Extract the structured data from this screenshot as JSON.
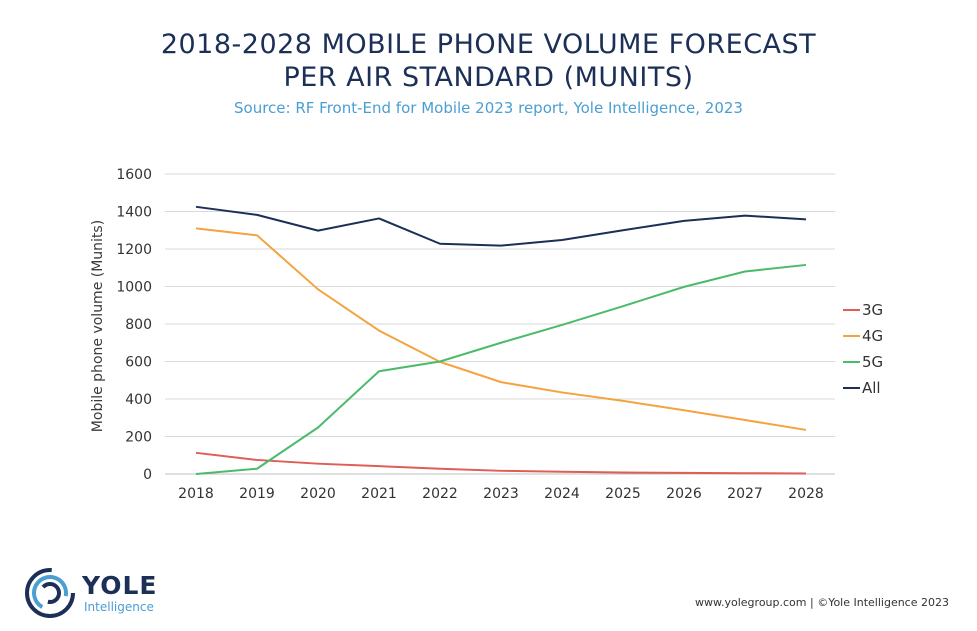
{
  "title_line1": "2018-2028 MOBILE PHONE VOLUME FORECAST",
  "title_line2": "PER AIR STANDARD (MUNITS)",
  "subtitle": "Source:  RF Front-End for Mobile 2023 report, Yole Intelligence, 2023",
  "footer": "www.yolegroup.com | ©Yole Intelligence 2023",
  "logo": {
    "word": "YOLE",
    "sub": "Intelligence",
    "icon": "yole-rings-logo"
  },
  "colors": {
    "title": "#1b2f57",
    "subtitle": "#4b9ed1",
    "grid": "#d9d9d9"
  },
  "chart_data": {
    "type": "line",
    "ylabel": "Mobile phone volume (Munits)",
    "xlabel": "",
    "x": [
      "2018",
      "2019",
      "2020",
      "2021",
      "2022",
      "2023",
      "2024",
      "2025",
      "2026",
      "2027",
      "2028"
    ],
    "ylim": [
      0,
      1600
    ],
    "yticks": [
      0,
      200,
      400,
      600,
      800,
      1000,
      1200,
      1400,
      1600
    ],
    "grid": "horizontal",
    "legend": "right",
    "series": [
      {
        "name": "3G",
        "color": "#e05c55",
        "values": [
          113,
          75,
          55,
          42,
          28,
          17,
          12,
          8,
          6,
          4,
          3
        ]
      },
      {
        "name": "4G",
        "color": "#f3a340",
        "values": [
          1310,
          1273,
          985,
          765,
          598,
          490,
          435,
          390,
          340,
          288,
          235
        ]
      },
      {
        "name": "5G",
        "color": "#4bbb6b",
        "values": [
          0,
          28,
          248,
          548,
          600,
          700,
          795,
          895,
          998,
          1080,
          1115
        ]
      },
      {
        "name": "All",
        "color": "#1b2f57",
        "values": [
          1425,
          1382,
          1298,
          1363,
          1228,
          1218,
          1248,
          1300,
          1350,
          1378,
          1358
        ]
      }
    ]
  }
}
